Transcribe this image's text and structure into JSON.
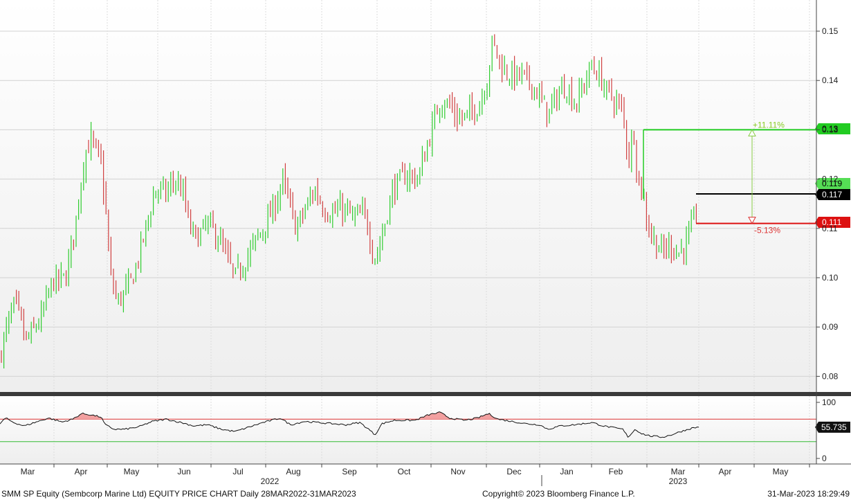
{
  "chart_data": {
    "type": "candlestick",
    "ticker_line": "SMM SP Equity (Sembcorp Marine Ltd) EQUITY PRICE CHART  Daily 28MAR2022-31MAR2023",
    "copyright": "Copyright© 2023 Bloomberg Finance L.P.",
    "timestamp": "31-Mar-2023  18:29:49",
    "x_months": [
      "Mar",
      "Apr",
      "May",
      "Jun",
      "Jul",
      "Aug",
      "Sep",
      "Oct",
      "Nov",
      "Dec",
      "Jan",
      "Feb",
      "Mar",
      "Apr",
      "May"
    ],
    "year_labels": [
      "2022",
      "2023"
    ],
    "price_axis": {
      "ylim": [
        0.077,
        0.156
      ],
      "ticks": [
        "0.15",
        "0.14",
        "0.13",
        "0.12",
        "0.11",
        "0.10",
        "0.09",
        "0.08"
      ]
    },
    "price_close_monthly": [
      {
        "month": "Mar 2022",
        "close": 0.088
      },
      {
        "month": "Apr 2022",
        "close": 0.124
      },
      {
        "month": "May 2022",
        "close": 0.096
      },
      {
        "month": "Jun 2022",
        "close": 0.118
      },
      {
        "month": "Jul 2022",
        "close": 0.1
      },
      {
        "month": "Aug 2022",
        "close": 0.113
      },
      {
        "month": "Sep 2022",
        "close": 0.112
      },
      {
        "month": "Oct 2022",
        "close": 0.131
      },
      {
        "month": "Nov 2022",
        "close": 0.14
      },
      {
        "month": "Dec 2022",
        "close": 0.139
      },
      {
        "month": "Jan 2023",
        "close": 0.143
      },
      {
        "month": "Feb 2023",
        "close": 0.113
      },
      {
        "month": "Mar 2023",
        "close": 0.117
      }
    ],
    "levels": [
      {
        "label": "0.13",
        "value": 0.13,
        "color": "#22cc22",
        "annotation": "+11.11%"
      },
      {
        "label": "0.119",
        "value": 0.119,
        "color": "#22cc22"
      },
      {
        "label": "0.117",
        "value": 0.117,
        "color": "#000000"
      },
      {
        "label": "0.111",
        "value": 0.111,
        "color": "#dd1111",
        "annotation": "-5.13%"
      }
    ],
    "rsi_axis": {
      "ylim": [
        0,
        100
      ],
      "ticks": [
        "100",
        "0"
      ],
      "upper": 70,
      "lower": 30,
      "last_label": "55.735"
    }
  }
}
